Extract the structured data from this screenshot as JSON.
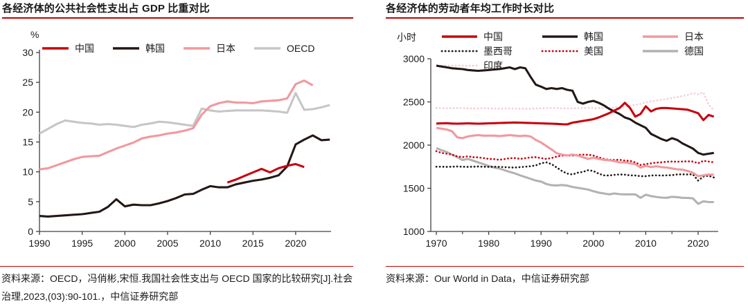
{
  "colors": {
    "accent_red": "#c00000",
    "china_red": "#c7000d",
    "korea_black": "#231815",
    "japan_pink": "#f2989e",
    "oecd_gray": "#c6c6c6",
    "germany_gray": "#b2b2b2",
    "india_pink": "#f6cdd1",
    "axis": "#404040",
    "text": "#1a1a1a"
  },
  "left_panel": {
    "title": "各经济体的公共社会性支出占 GDP 比重对比",
    "unit_label": "%",
    "source": "资料来源：OECD，冯俏彬,宋恒.我国社会性支出与 OECD 国家的比较研究[J].社会治理,2023,(03):90-101.，中信证券研究部"
  },
  "right_panel": {
    "title": "各经济体的劳动者年均工作时长对比",
    "unit_label": "小时",
    "source": "资料来源：Our World in Data，中信证券研究部"
  },
  "chart_data": [
    {
      "type": "line",
      "title": "各经济体的公共社会性支出占 GDP 比重对比",
      "xlabel": "",
      "ylabel": "%",
      "xlim": [
        1990,
        2024
      ],
      "ylim": [
        0,
        30
      ],
      "yticks": [
        0,
        5,
        10,
        15,
        20,
        25,
        30
      ],
      "xticks": [
        1990,
        1995,
        2000,
        2005,
        2010,
        2015,
        2020
      ],
      "xticks_minor": [],
      "grid": false,
      "legend_position": "top",
      "series": [
        {
          "name": "中国",
          "color": "#c7000d",
          "dash": "solid",
          "start_year": 2012,
          "values": [
            8.2,
            8.7,
            9.3,
            9.9,
            10.5,
            9.9,
            10.6,
            11.0,
            11.3,
            10.8
          ]
        },
        {
          "name": "韩国",
          "color": "#231815",
          "dash": "solid",
          "start_year": 1990,
          "values": [
            2.6,
            2.5,
            2.6,
            2.7,
            2.8,
            2.9,
            3.1,
            3.3,
            4.1,
            5.4,
            4.2,
            4.5,
            4.4,
            4.4,
            4.7,
            5.1,
            5.6,
            6.2,
            6.3,
            7.0,
            7.6,
            7.4,
            7.4,
            7.9,
            8.2,
            8.5,
            8.7,
            9.0,
            9.4,
            10.9,
            14.6,
            15.4,
            16.1,
            15.3,
            15.4
          ]
        },
        {
          "name": "日本",
          "color": "#f2989e",
          "dash": "solid",
          "start_year": 1990,
          "values": [
            10.4,
            10.6,
            11.1,
            11.6,
            12.1,
            12.5,
            12.6,
            12.7,
            13.3,
            13.9,
            14.4,
            14.9,
            15.6,
            15.9,
            16.1,
            16.4,
            16.6,
            16.9,
            17.3,
            19.6,
            21.0,
            21.5,
            21.8,
            21.6,
            21.6,
            21.5,
            21.8,
            21.9,
            22.0,
            22.3,
            24.7,
            25.3,
            24.5
          ]
        },
        {
          "name": "OECD",
          "color": "#c6c6c6",
          "dash": "solid",
          "start_year": 1990,
          "values": [
            16.4,
            17.2,
            18.0,
            18.6,
            18.4,
            18.2,
            18.1,
            17.9,
            18.0,
            17.9,
            17.7,
            17.5,
            17.9,
            18.1,
            18.4,
            18.3,
            18.1,
            17.9,
            17.7,
            20.6,
            20.3,
            20.1,
            20.2,
            20.3,
            20.3,
            20.3,
            20.3,
            20.2,
            20.1,
            19.9,
            23.2,
            20.4,
            20.5,
            20.8,
            21.2
          ]
        }
      ]
    },
    {
      "type": "line",
      "title": "各经济体的劳动者年均工作时长对比",
      "xlabel": "",
      "ylabel": "小时",
      "xlim": [
        1970,
        2024
      ],
      "ylim": [
        1000,
        3000
      ],
      "yticks": [
        1000,
        1500,
        2000,
        2500,
        3000
      ],
      "xticks": [
        1970,
        1980,
        1990,
        2000,
        2010,
        2020
      ],
      "xticks_minor": [
        1975,
        1985,
        1995,
        2005,
        2015
      ],
      "grid": false,
      "legend_position": "top",
      "series": [
        {
          "name": "中国",
          "color": "#c7000d",
          "dash": "solid",
          "start_year": 1970,
          "values": [
            2250,
            2252,
            2254,
            2250,
            2248,
            2250,
            2252,
            2250,
            2248,
            2250,
            2252,
            2254,
            2256,
            2258,
            2260,
            2262,
            2260,
            2258,
            2256,
            2254,
            2252,
            2250,
            2248,
            2246,
            2242,
            2240,
            2260,
            2270,
            2280,
            2290,
            2300,
            2320,
            2345,
            2370,
            2400,
            2430,
            2490,
            2430,
            2330,
            2360,
            2450,
            2390,
            2420,
            2430,
            2430,
            2425,
            2420,
            2415,
            2410,
            2390,
            2370,
            2290,
            2350,
            2330
          ]
        },
        {
          "name": "韩国",
          "color": "#231815",
          "dash": "solid",
          "start_year": 1970,
          "values": [
            2920,
            2910,
            2900,
            2890,
            2885,
            2880,
            2870,
            2865,
            2860,
            2865,
            2870,
            2875,
            2880,
            2890,
            2900,
            2880,
            2900,
            2890,
            2790,
            2700,
            2677,
            2650,
            2660,
            2650,
            2660,
            2640,
            2630,
            2500,
            2480,
            2500,
            2512,
            2490,
            2460,
            2420,
            2390,
            2360,
            2320,
            2300,
            2260,
            2230,
            2200,
            2130,
            2100,
            2070,
            2050,
            2080,
            2060,
            2020,
            1990,
            1960,
            1910,
            1890,
            1900,
            1910
          ]
        },
        {
          "name": "日本",
          "color": "#f2989e",
          "dash": "solid",
          "start_year": 1970,
          "values": [
            2200,
            2190,
            2180,
            2160,
            2090,
            2080,
            2100,
            2110,
            2115,
            2110,
            2110,
            2110,
            2105,
            2110,
            2115,
            2110,
            2105,
            2110,
            2100,
            2060,
            2030,
            1990,
            1950,
            1905,
            1890,
            1880,
            1890,
            1880,
            1860,
            1840,
            1855,
            1840,
            1830,
            1825,
            1815,
            1800,
            1800,
            1790,
            1780,
            1740,
            1760,
            1745,
            1755,
            1745,
            1740,
            1730,
            1720,
            1715,
            1700,
            1680,
            1640,
            1650,
            1660,
            1655
          ]
        },
        {
          "name": "墨西哥",
          "color": "#231815",
          "dash": "dotted",
          "start_year": 1970,
          "values": [
            1750,
            1750,
            1748,
            1750,
            1752,
            1750,
            1748,
            1750,
            1752,
            1750,
            1748,
            1750,
            1748,
            1745,
            1742,
            1740,
            1745,
            1750,
            1755,
            1765,
            1790,
            1800,
            1780,
            1740,
            1700,
            1670,
            1660,
            1680,
            1690,
            1710,
            1700,
            1670,
            1650,
            1648,
            1655,
            1660,
            1658,
            1650,
            1648,
            1640,
            1640,
            1648,
            1650,
            1648,
            1650,
            1652,
            1660,
            1662,
            1660,
            1662,
            1590,
            1635,
            1645,
            1625
          ]
        },
        {
          "name": "美国",
          "color": "#c7000d",
          "dash": "dotted",
          "start_year": 1970,
          "values": [
            1930,
            1910,
            1900,
            1890,
            1870,
            1860,
            1870,
            1860,
            1858,
            1850,
            1840,
            1838,
            1830,
            1838,
            1848,
            1850,
            1840,
            1848,
            1858,
            1860,
            1850,
            1840,
            1850,
            1868,
            1878,
            1880,
            1878,
            1888,
            1890,
            1888,
            1880,
            1858,
            1840,
            1830,
            1828,
            1830,
            1820,
            1818,
            1800,
            1770,
            1780,
            1788,
            1798,
            1800,
            1808,
            1810,
            1808,
            1810,
            1812,
            1810,
            1790,
            1818,
            1810,
            1800
          ]
        },
        {
          "name": "德国",
          "color": "#b2b2b2",
          "dash": "solid",
          "start_year": 1970,
          "values": [
            1966,
            1940,
            1920,
            1890,
            1860,
            1827,
            1840,
            1820,
            1800,
            1780,
            1758,
            1740,
            1730,
            1710,
            1690,
            1673,
            1650,
            1630,
            1610,
            1590,
            1578,
            1550,
            1535,
            1533,
            1538,
            1531,
            1515,
            1505,
            1495,
            1485,
            1466,
            1450,
            1440,
            1430,
            1440,
            1432,
            1430,
            1430,
            1430,
            1390,
            1426,
            1410,
            1400,
            1392,
            1390,
            1401,
            1398,
            1390,
            1388,
            1383,
            1320,
            1349,
            1341,
            1340
          ]
        },
        {
          "name": "印度",
          "color": "#f6cdd1",
          "dash": "dotted",
          "start_year": 1970,
          "values": [
            2430,
            2428,
            2426,
            2428,
            2430,
            2428,
            2426,
            2424,
            2426,
            2428,
            2426,
            2424,
            2422,
            2424,
            2426,
            2424,
            2422,
            2420,
            2422,
            2424,
            2426,
            2428,
            2430,
            2428,
            2426,
            2424,
            2426,
            2428,
            2430,
            2432,
            2430,
            2428,
            2430,
            2432,
            2434,
            2440,
            2448,
            2456,
            2466,
            2478,
            2495,
            2505,
            2515,
            2525,
            2535,
            2545,
            2555,
            2568,
            2580,
            2600,
            2590,
            2610,
            2470,
            2405
          ]
        }
      ]
    }
  ]
}
